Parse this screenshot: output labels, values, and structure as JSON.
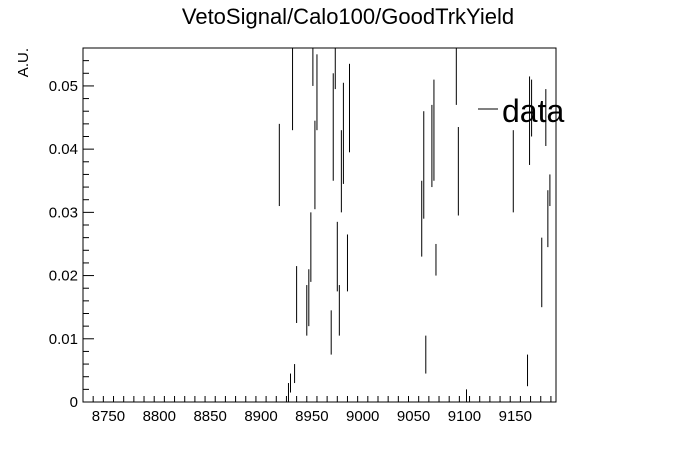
{
  "chart_data": {
    "type": "scatter",
    "title": "VetoSignal/Calo100/GoodTrkYield",
    "xlabel": "",
    "ylabel": "A.U.",
    "xlim": [
      8725,
      9190
    ],
    "ylim": [
      0,
      0.056
    ],
    "xticks": [
      8750,
      8800,
      8850,
      8900,
      8950,
      9000,
      9050,
      9100,
      9150
    ],
    "yticks": [
      0,
      0.01,
      0.02,
      0.03,
      0.04,
      0.05
    ],
    "ytick_labels": [
      "0",
      "0.01",
      "0.02",
      "0.03",
      "0.04",
      "0.05"
    ],
    "grid": false,
    "legend_position": "top-right",
    "series": [
      {
        "name": "data",
        "x": [
          8918,
          8927,
          8929,
          8931,
          8933,
          8935,
          8945,
          8947,
          8949,
          8951,
          8953,
          8955,
          8969,
          8971,
          8973,
          8975,
          8977,
          8979,
          8981,
          8985,
          8987,
          9058,
          9060,
          9062,
          9068,
          9070,
          9072,
          9092,
          9094,
          9102,
          9148,
          9162,
          9164,
          9166,
          9176,
          9180,
          9182,
          9184
        ],
        "y": [
          0.0375,
          0.0015,
          0.003,
          0.051,
          0.0045,
          0.017,
          0.0145,
          0.0165,
          0.0245,
          0.054,
          0.0375,
          0.049,
          0.011,
          0.0435,
          0.0535,
          0.023,
          0.0145,
          0.0365,
          0.0425,
          0.022,
          0.0465,
          0.029,
          0.0375,
          0.0075,
          0.0405,
          0.043,
          0.0225,
          0.053,
          0.0365,
          0.001,
          0.0365,
          0.005,
          0.0445,
          0.0465,
          0.0205,
          0.045,
          0.029,
          0.0335
        ],
        "err": [
          0.0065,
          0.0015,
          0.0015,
          0.008,
          0.0015,
          0.0045,
          0.004,
          0.0045,
          0.0055,
          0.004,
          0.007,
          0.006,
          0.0035,
          0.0085,
          0.004,
          0.0055,
          0.004,
          0.0065,
          0.008,
          0.0045,
          0.007,
          0.006,
          0.0085,
          0.003,
          0.0065,
          0.008,
          0.0025,
          0.006,
          0.007,
          0.001,
          0.0065,
          0.0025,
          0.007,
          0.0045,
          0.0055,
          0.0045,
          0.0045,
          0.0025
        ]
      }
    ]
  }
}
